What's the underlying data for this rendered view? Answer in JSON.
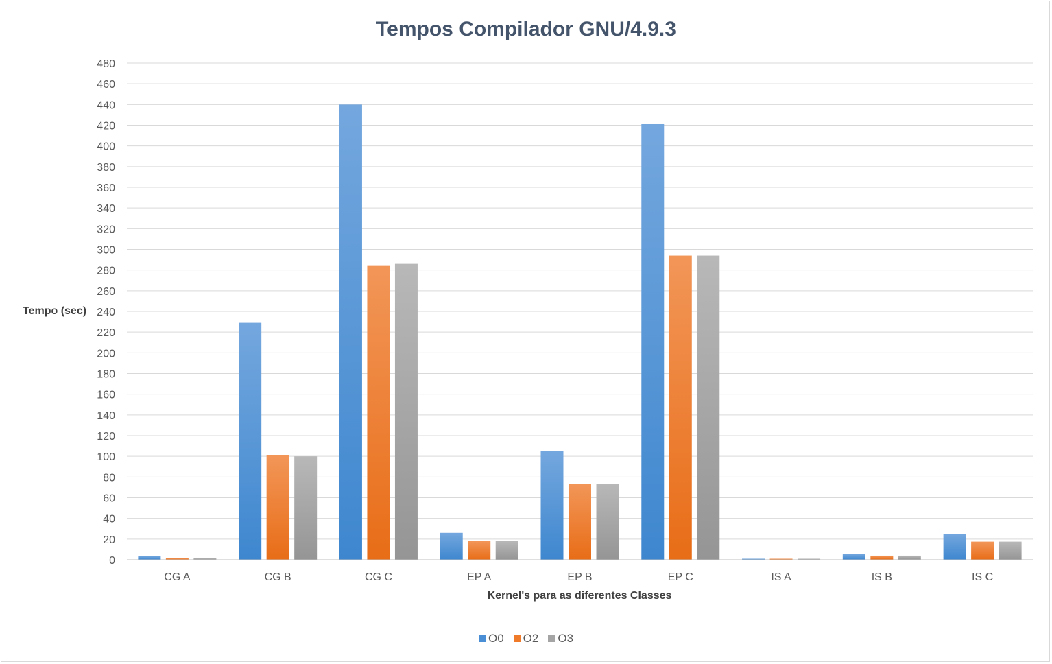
{
  "chart_data": {
    "type": "bar",
    "title": "Tempos Compilador GNU/4.9.3",
    "xlabel": "Kernel's para as diferentes Classes",
    "ylabel": "Tempo (sec)",
    "ylim": [
      0,
      480
    ],
    "yticks": [
      0,
      20,
      40,
      60,
      80,
      100,
      120,
      140,
      160,
      180,
      200,
      220,
      240,
      260,
      280,
      300,
      320,
      340,
      360,
      380,
      400,
      420,
      440,
      460,
      480
    ],
    "grid": true,
    "legend_position": "bottom",
    "categories": [
      "CG A",
      "CG B",
      "CG C",
      "EP A",
      "EP B",
      "EP C",
      "IS A",
      "IS B",
      "IS C"
    ],
    "series": [
      {
        "name": "O0",
        "color": "#4a8fd6",
        "values": [
          3.5,
          229,
          440,
          26,
          105,
          421,
          1,
          5.5,
          25
        ]
      },
      {
        "name": "O2",
        "color": "#ef7b2a",
        "values": [
          1.5,
          101,
          284,
          18,
          73.5,
          294,
          1,
          4,
          17.5
        ]
      },
      {
        "name": "O3",
        "color": "#a5a5a5",
        "values": [
          1.5,
          100,
          286,
          18,
          73.5,
          294,
          1,
          4,
          17.5
        ]
      }
    ]
  }
}
